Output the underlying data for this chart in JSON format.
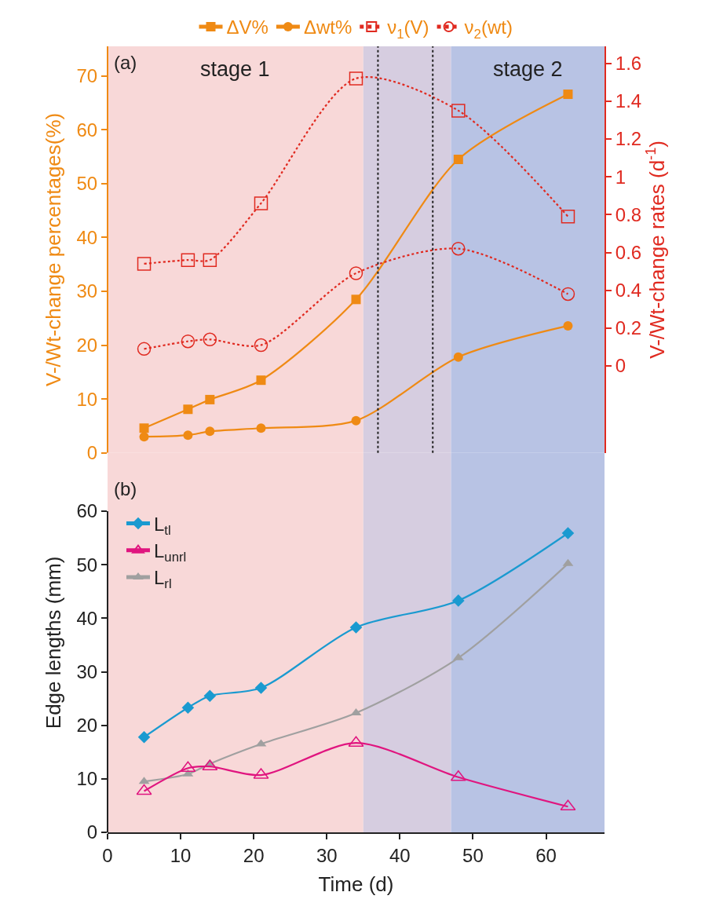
{
  "chart_data": [
    {
      "type": "line",
      "title": "(a)",
      "ylabel": "V-/Wt-change percentages(%)",
      "y2label": "V-/Wt-change rates (d$^{-1}$)",
      "x": [
        5,
        11,
        14,
        21,
        34,
        48,
        63
      ],
      "xlim": [
        0,
        68
      ],
      "ylim": [
        0,
        75.5
      ],
      "yticks": [
        0,
        10,
        20,
        30,
        40,
        50,
        60,
        70
      ],
      "y2lim": [
        -0.46,
        1.69
      ],
      "y2ticks": [
        0,
        0.2,
        0.4,
        0.6,
        0.8,
        1.0,
        1.2,
        1.4,
        1.6
      ],
      "tick_labels": "y",
      "legend": "top",
      "grid": false,
      "series": [
        {
          "name": "ΔV%",
          "color": "#ef8a14",
          "marker": "square",
          "line_style": "solid",
          "values": [
            4.6,
            8.1,
            9.9,
            13.5,
            28.5,
            54.5,
            66.6
          ]
        },
        {
          "name": "Δwt%",
          "color": "#ef8a14",
          "marker": "circle",
          "line_style": "solid",
          "values": [
            3.0,
            3.3,
            4.0,
            4.6,
            6.0,
            17.8,
            23.6
          ]
        },
        {
          "name": "ν$_{1}$(V)",
          "color": "#e02a20",
          "marker": "square-open",
          "line_style": "dotted",
          "axis": "y2",
          "values": [
            0.54,
            0.56,
            0.56,
            0.86,
            1.52,
            1.35,
            0.79
          ]
        },
        {
          "name": "ν$_{2}$(wt)",
          "color": "#e02a20",
          "marker": "circle-open",
          "line_style": "dotted",
          "axis": "y2",
          "values": [
            0.09,
            0.13,
            0.14,
            0.11,
            0.49,
            0.62,
            0.38
          ]
        }
      ],
      "ref_lines": [
        {
          "axis": "x",
          "value": 37,
          "color": "#222222",
          "line_style": "dotted"
        },
        {
          "axis": "x",
          "value": 44.5,
          "color": "#222222",
          "line_style": "dotted"
        }
      ],
      "bands": [
        {
          "axis": "x",
          "from": 0,
          "to": 35,
          "label": "stage 1",
          "color": "#f8d8d8"
        },
        {
          "axis": "x",
          "from": 35,
          "to": 47,
          "color": "#d6cde0"
        },
        {
          "axis": "x",
          "from": 47,
          "to": 68,
          "label": "stage 2",
          "color": "#b8c3e4"
        }
      ]
    },
    {
      "type": "line",
      "title": "(b)",
      "xlabel": "Time (d)",
      "ylabel": "Edge lengths (mm)",
      "x": [
        5,
        11,
        14,
        21,
        34,
        48,
        63
      ],
      "xlim": [
        0,
        68
      ],
      "xticks": [
        0,
        10,
        20,
        30,
        40,
        50,
        60
      ],
      "ylim": [
        0,
        70.9
      ],
      "yticks": [
        0,
        10,
        20,
        30,
        40,
        50,
        60
      ],
      "legend": "top left",
      "grid": false,
      "series": [
        {
          "name": "L$_{tl}$",
          "color": "#1a9ad0",
          "marker": "diamond",
          "line_style": "solid",
          "values": [
            17.8,
            23.3,
            25.5,
            27.0,
            38.3,
            43.3,
            55.9
          ]
        },
        {
          "name": "L$_{unrl}$",
          "color": "#e0157f",
          "marker": "triangle-up-open",
          "line_style": "solid",
          "values": [
            7.7,
            12.0,
            12.3,
            10.7,
            16.7,
            10.3,
            4.8
          ]
        },
        {
          "name": "L$_{rl}$",
          "color": "#a0a0a0",
          "marker": "triangle-up",
          "line_style": "solid",
          "values": [
            9.5,
            10.9,
            12.8,
            16.5,
            22.3,
            32.6,
            50.2
          ]
        }
      ],
      "bands": [
        {
          "axis": "x",
          "from": 0,
          "to": 35,
          "color": "#f8d8d8"
        },
        {
          "axis": "x",
          "from": 35,
          "to": 47,
          "color": "#d6cde0"
        },
        {
          "axis": "x",
          "from": 47,
          "to": 68,
          "color": "#b8c3e4"
        }
      ]
    }
  ]
}
